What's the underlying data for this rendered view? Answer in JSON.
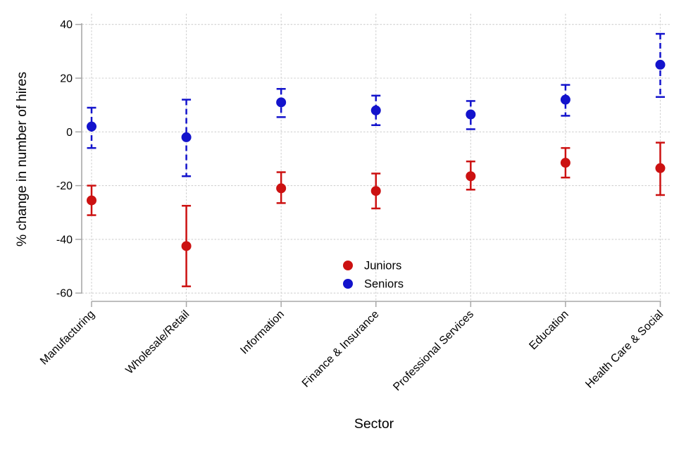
{
  "chart_data": {
    "type": "scatter",
    "subtype": "dot-with-error-bars",
    "title": "",
    "xlabel": "Sector",
    "ylabel": "% change in number of hires",
    "categories": [
      "Manufacturing",
      "Wholesale/Retail",
      "Information",
      "Finance & Insurance",
      "Professional Services",
      "Education",
      "Health Care & Social"
    ],
    "y_ticks": [
      40,
      20,
      0,
      -20,
      -40,
      -60
    ],
    "ylim": [
      -60,
      40
    ],
    "grid": "dotted horizontal and vertical gridlines at every tick/category",
    "legend": {
      "position": "inside plot, lower middle-left",
      "marker": "filled circle"
    },
    "background_color": "#ffffff",
    "axis_color": "#a8a8a8",
    "grid_color": "#cfcfcf",
    "series": [
      {
        "name": "Juniors",
        "color": "#cc1111",
        "error_bar_style": "solid",
        "values": [
          -25.5,
          -42.5,
          -21,
          -22,
          -16.5,
          -11.5,
          -13.5
        ],
        "ci_low": [
          -31,
          -57.5,
          -26.5,
          -28.5,
          -21.5,
          -17,
          -23.5
        ],
        "ci_high": [
          -20,
          -27.5,
          -15,
          -15.5,
          -11,
          -6,
          -4
        ]
      },
      {
        "name": "Seniors",
        "color": "#1313cc",
        "error_bar_style": "dashed",
        "values": [
          2,
          -2,
          11,
          8,
          6.5,
          12,
          25
        ],
        "ci_low": [
          -6,
          -16.5,
          5.5,
          2.5,
          1,
          6,
          13
        ],
        "ci_high": [
          9,
          12,
          16,
          13.5,
          11.5,
          17.5,
          36.5
        ]
      }
    ]
  }
}
